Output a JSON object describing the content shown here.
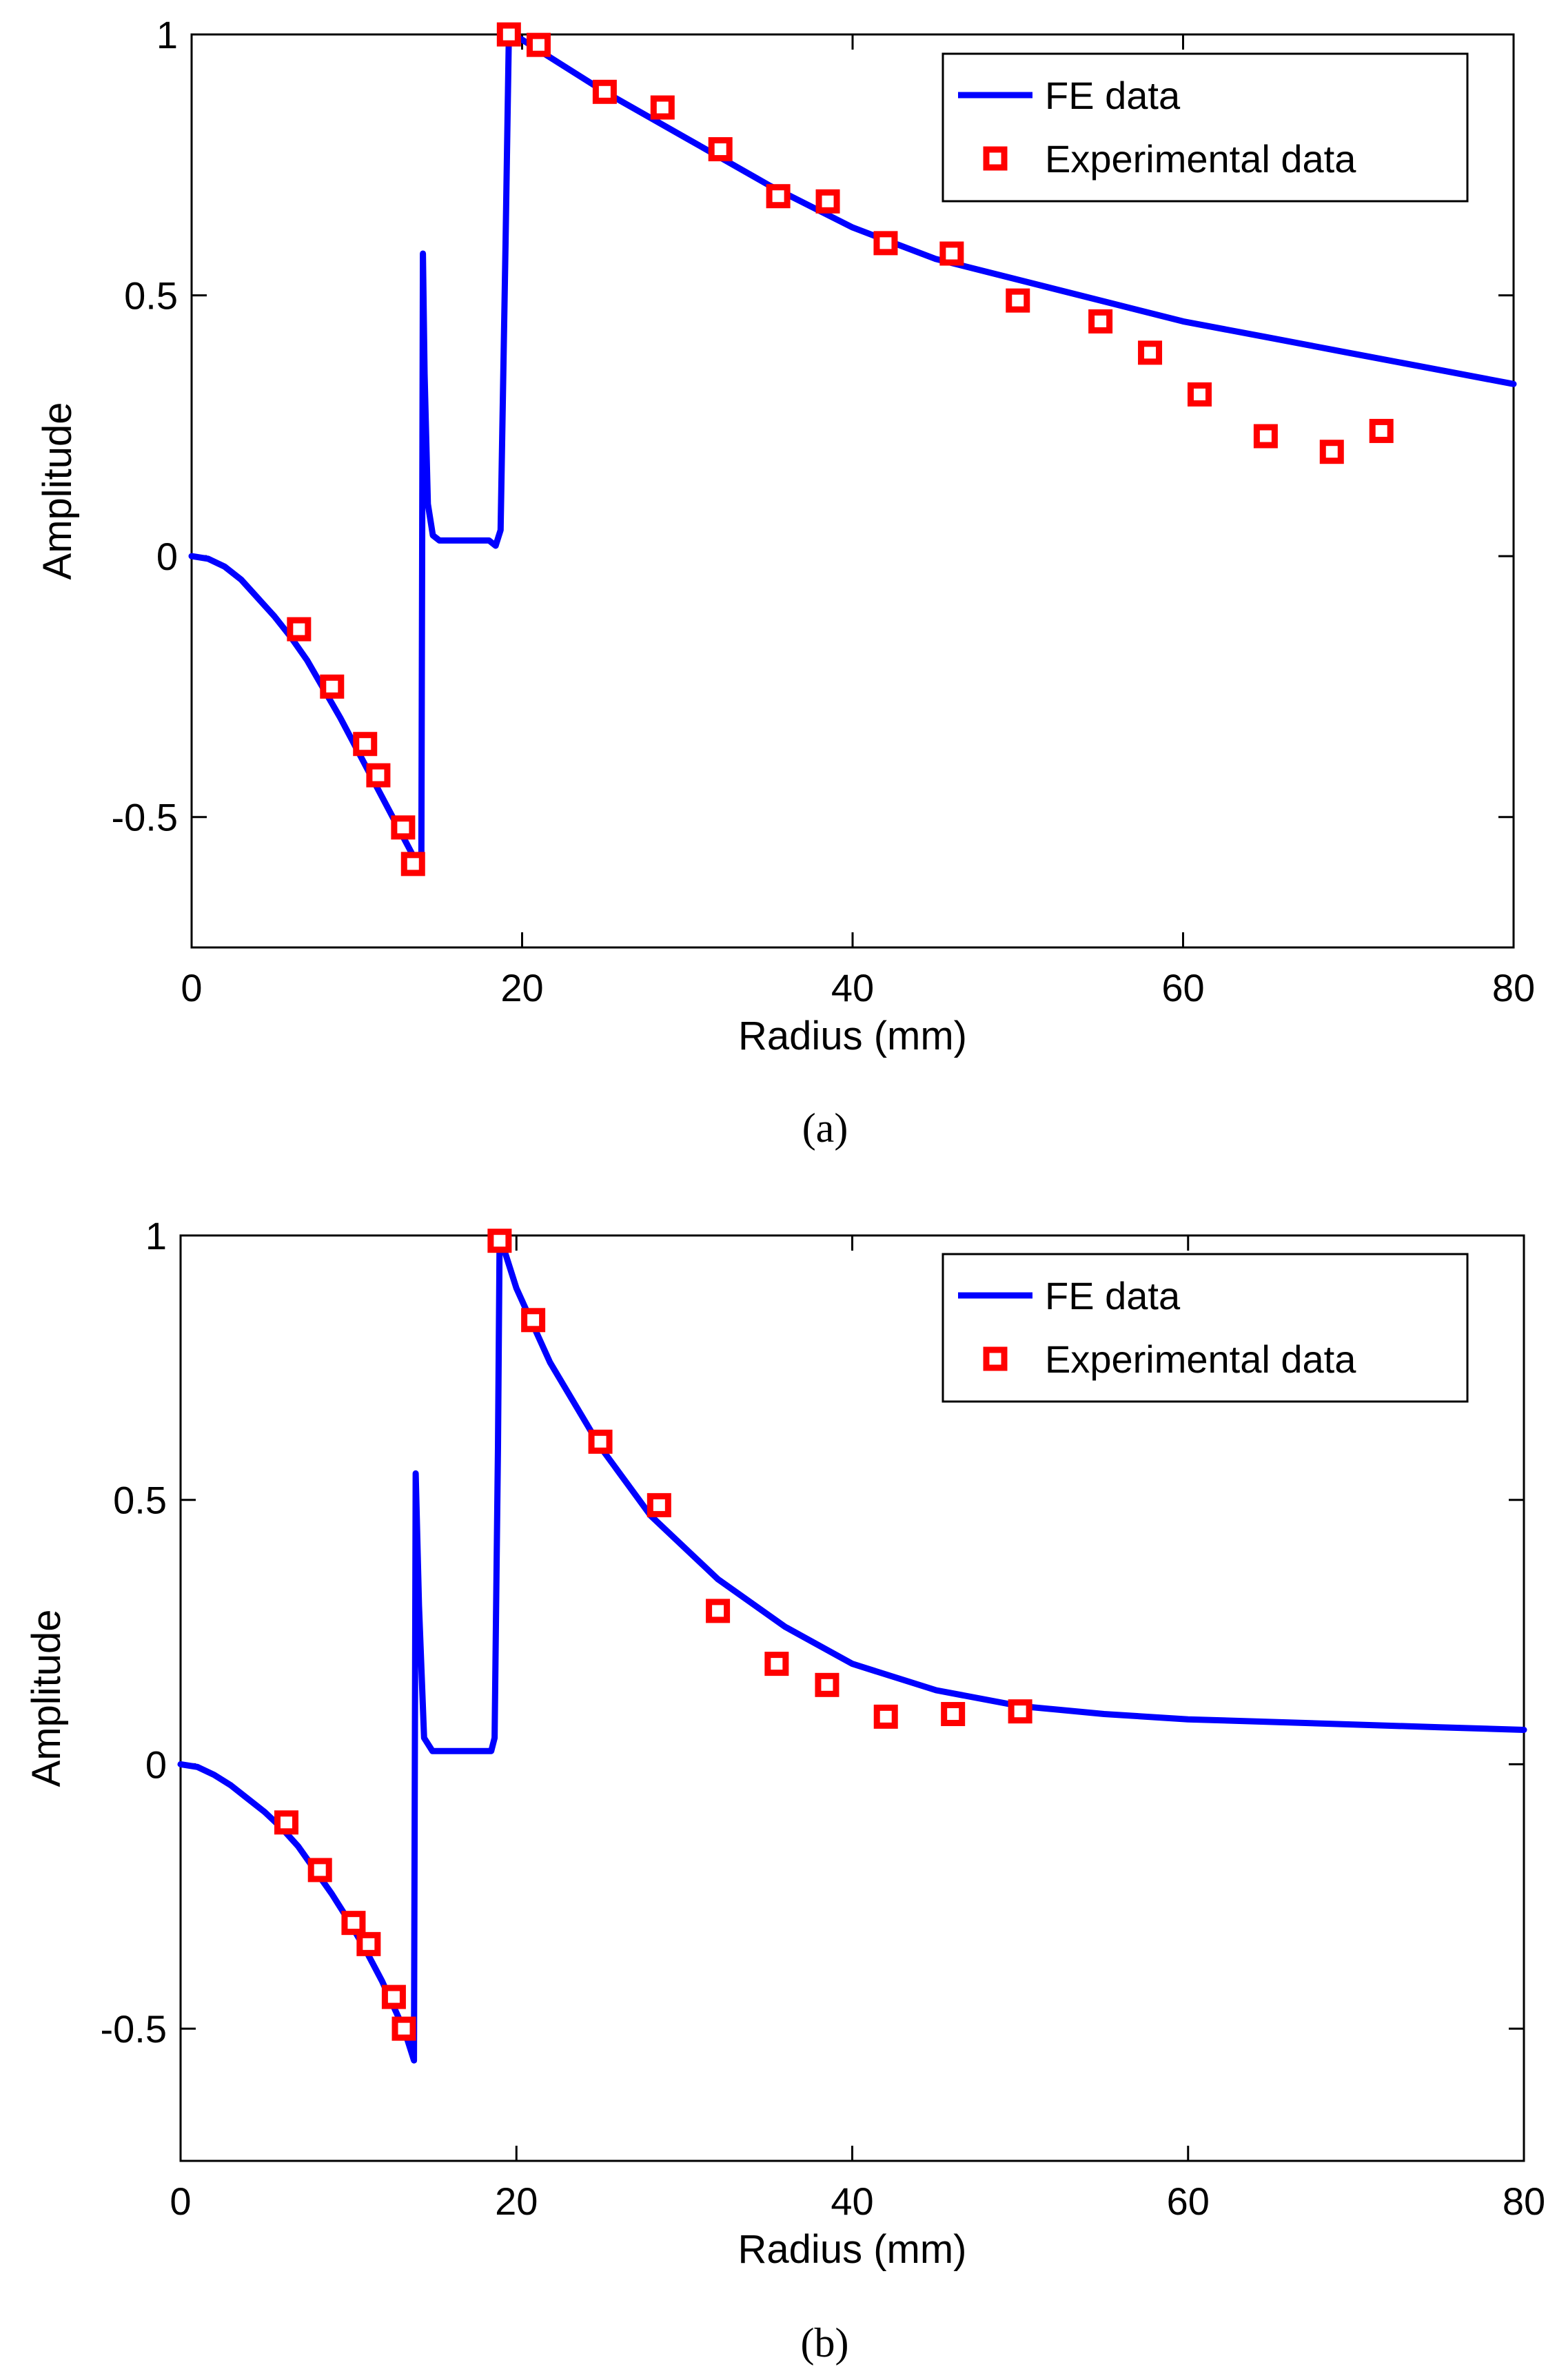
{
  "chart_data": [
    {
      "type": "line",
      "panel_label": "a",
      "caption": "(a)",
      "title": "",
      "xlabel": "Radius (mm)",
      "ylabel": "Amplitude",
      "xlim": [
        0,
        80
      ],
      "ylim": [
        -0.75,
        1
      ],
      "xticks": [
        0,
        20,
        40,
        60,
        80
      ],
      "yticks": [
        -0.5,
        0,
        0.5,
        1
      ],
      "ytick_labels": [
        "-0.5",
        "0",
        "0.5",
        "1"
      ],
      "grid": false,
      "legend_position": "top-right",
      "series": [
        {
          "name": "FE data",
          "kind": "line",
          "color": "#0000ff",
          "x": [
            0,
            1,
            2,
            3,
            4,
            5,
            6,
            7,
            8,
            9,
            10,
            11,
            12,
            13,
            13.5,
            13.9,
            14.0,
            14.1,
            14.3,
            14.6,
            15,
            16,
            17,
            18,
            18.4,
            18.7,
            19.0,
            19.2,
            20,
            22,
            25,
            30,
            35,
            40,
            45,
            50,
            55,
            60,
            65,
            70,
            75,
            80
          ],
          "y": [
            0,
            -0.005,
            -0.02,
            -0.045,
            -0.08,
            -0.115,
            -0.155,
            -0.2,
            -0.255,
            -0.31,
            -0.37,
            -0.43,
            -0.49,
            -0.55,
            -0.58,
            -0.6,
            0.58,
            0.35,
            0.1,
            0.04,
            0.03,
            0.03,
            0.03,
            0.03,
            0.02,
            0.05,
            0.6,
            1.0,
            0.99,
            0.95,
            0.89,
            0.8,
            0.71,
            0.63,
            0.57,
            0.53,
            0.49,
            0.45,
            0.42,
            0.39,
            0.36,
            0.33
          ]
        },
        {
          "name": "Experimental data",
          "kind": "scatter",
          "marker": "square",
          "color": "#ff0000",
          "x": [
            6.5,
            8.5,
            10.5,
            11.3,
            12.8,
            13.4,
            19.2,
            21,
            25,
            28.5,
            32,
            35.5,
            38.5,
            42,
            46,
            50,
            55,
            58,
            61,
            65,
            69,
            72
          ],
          "y": [
            -0.14,
            -0.25,
            -0.36,
            -0.42,
            -0.52,
            -0.59,
            1.0,
            0.98,
            0.89,
            0.86,
            0.78,
            0.69,
            0.68,
            0.6,
            0.58,
            0.49,
            0.45,
            0.39,
            0.31,
            0.23,
            0.2,
            0.24
          ]
        }
      ]
    },
    {
      "type": "line",
      "panel_label": "b",
      "caption": "(b)",
      "title": "",
      "xlabel": "Radius (mm)",
      "ylabel": "Amplitude",
      "xlim": [
        0,
        80
      ],
      "ylim": [
        -0.75,
        1
      ],
      "xticks": [
        0,
        20,
        40,
        60,
        80
      ],
      "yticks": [
        -0.5,
        0,
        0.5,
        1
      ],
      "ytick_labels": [
        "-0.5",
        "0",
        "0.5",
        "1"
      ],
      "grid": false,
      "legend_position": "top-right",
      "series": [
        {
          "name": "FE data",
          "kind": "line",
          "color": "#0000ff",
          "x": [
            0,
            1,
            2,
            3,
            4,
            5,
            6,
            7,
            8,
            9,
            10,
            11,
            12,
            13,
            13.5,
            13.8,
            13.9,
            14.0,
            14.2,
            14.5,
            15,
            16,
            17,
            18,
            18.5,
            18.7,
            18.9,
            19.0,
            20,
            22,
            25,
            28,
            32,
            36,
            40,
            45,
            50,
            55,
            60,
            65,
            70,
            75,
            80
          ],
          "y": [
            0,
            -0.005,
            -0.02,
            -0.04,
            -0.065,
            -0.09,
            -0.12,
            -0.155,
            -0.2,
            -0.245,
            -0.295,
            -0.35,
            -0.41,
            -0.48,
            -0.52,
            -0.55,
            -0.56,
            0.55,
            0.3,
            0.05,
            0.025,
            0.025,
            0.025,
            0.025,
            0.025,
            0.05,
            0.6,
            1.0,
            0.9,
            0.76,
            0.6,
            0.47,
            0.35,
            0.26,
            0.19,
            0.14,
            0.11,
            0.095,
            0.085,
            0.08,
            0.075,
            0.07,
            0.065
          ]
        },
        {
          "name": "Experimental data",
          "kind": "scatter",
          "marker": "square",
          "color": "#ff0000",
          "x": [
            6.3,
            8.3,
            10.3,
            11.2,
            12.7,
            13.3,
            19.0,
            21,
            25,
            28.5,
            32,
            35.5,
            38.5,
            42,
            46,
            50
          ],
          "y": [
            -0.11,
            -0.2,
            -0.3,
            -0.34,
            -0.44,
            -0.5,
            0.99,
            0.84,
            0.61,
            0.49,
            0.29,
            0.19,
            0.15,
            0.09,
            0.095,
            0.1
          ]
        }
      ]
    }
  ]
}
